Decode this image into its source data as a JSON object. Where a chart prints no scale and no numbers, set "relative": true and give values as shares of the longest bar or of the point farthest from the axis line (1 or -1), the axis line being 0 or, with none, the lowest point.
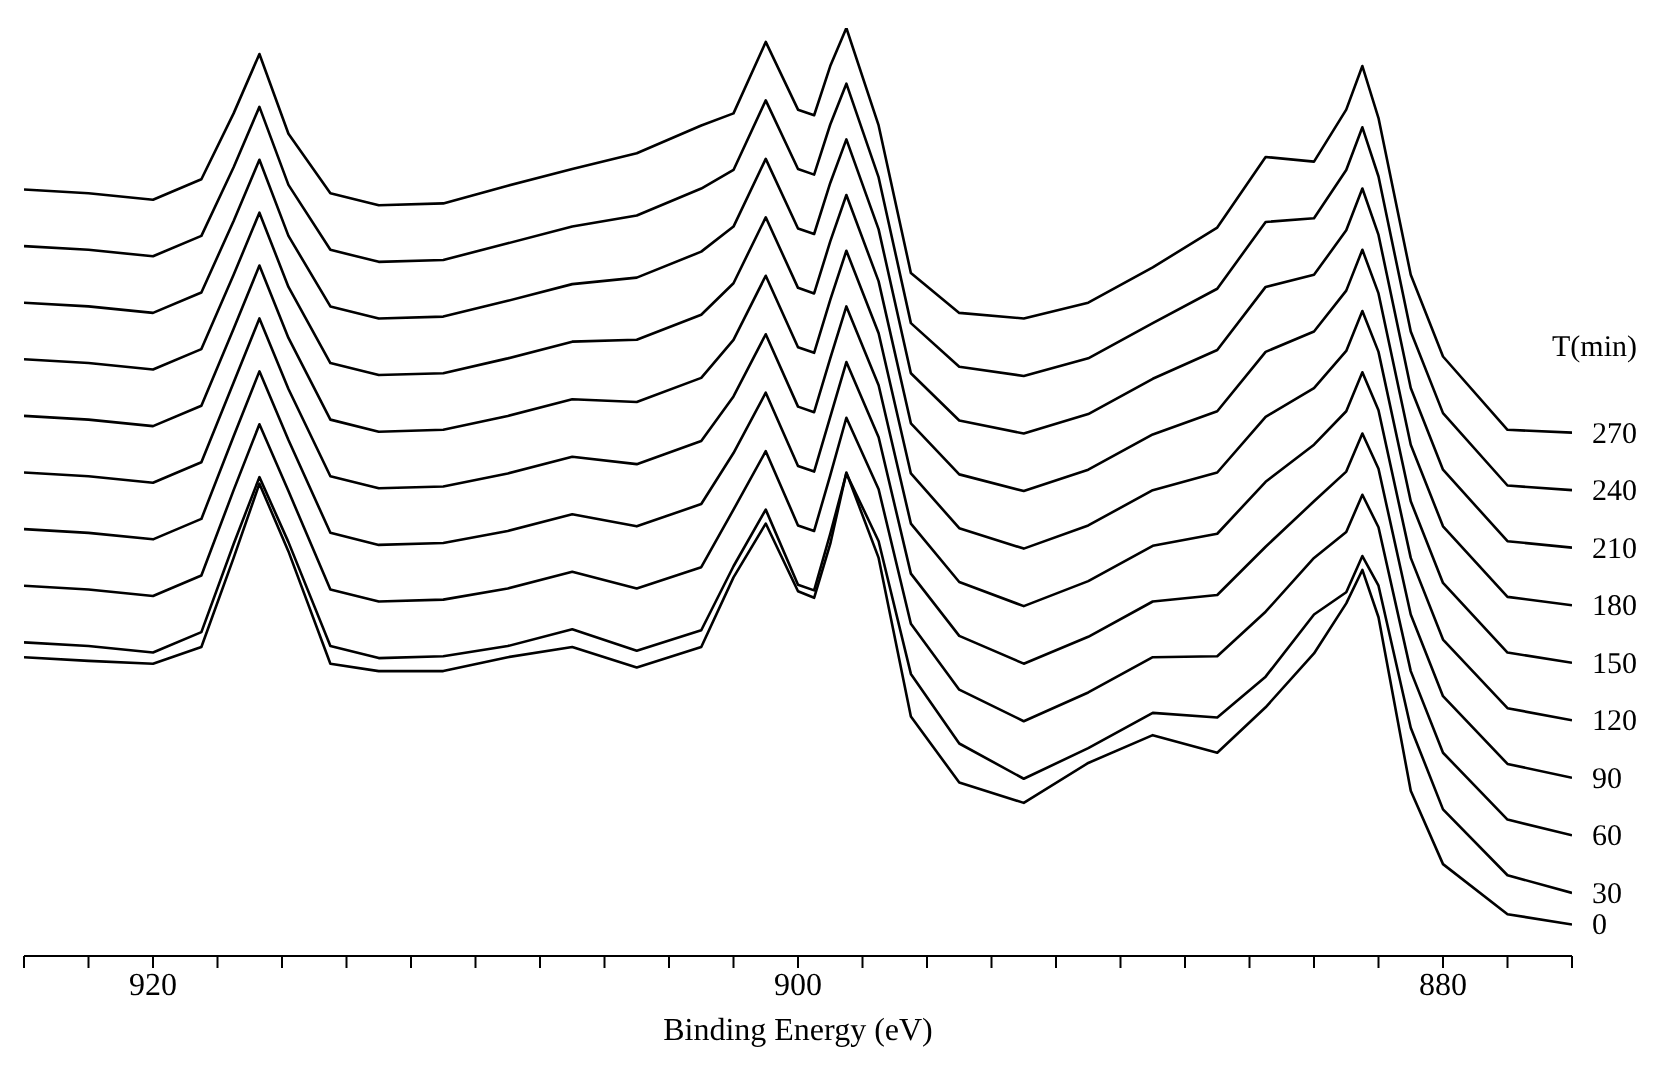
{
  "chart_data": {
    "type": "line",
    "relative": true,
    "xlabel": "Binding Energy (eV)",
    "legend_title": "T(min)",
    "legend": false,
    "marker": "none",
    "line_style": "solid",
    "xlim": [
      924,
      876
    ],
    "xticks": [
      {
        "value": 924,
        "label": null
      },
      {
        "value": 922,
        "label": null
      },
      920,
      {
        "value": 918,
        "label": null
      },
      {
        "value": 916,
        "label": null
      },
      {
        "value": 914,
        "label": null
      },
      {
        "value": 912,
        "label": null
      },
      {
        "value": 910,
        "label": null
      },
      {
        "value": 908,
        "label": null
      },
      {
        "value": 906,
        "label": null
      },
      {
        "value": 904,
        "label": null
      },
      {
        "value": 902,
        "label": null
      },
      900,
      {
        "value": 898,
        "label": null
      },
      {
        "value": 896,
        "label": null
      },
      {
        "value": 894,
        "label": null
      },
      {
        "value": 892,
        "label": null
      },
      {
        "value": 890,
        "label": null
      },
      {
        "value": 888,
        "label": null
      },
      {
        "value": 886,
        "label": null
      },
      {
        "value": 884,
        "label": null
      },
      {
        "value": 882,
        "label": null
      },
      880,
      {
        "value": 878,
        "label": null
      },
      {
        "value": 876,
        "label": null
      }
    ],
    "x": [
      924,
      922,
      920,
      918.5,
      917.5,
      916.7,
      915.8,
      914.5,
      913,
      911,
      909,
      907,
      905,
      903,
      902,
      901,
      900,
      899.5,
      899,
      898.5,
      897.5,
      896.5,
      895,
      893,
      891,
      889,
      887,
      885.5,
      884,
      883,
      882.5,
      882,
      881,
      880,
      878,
      876
    ],
    "series": [
      {
        "name": "270",
        "color": "#000000",
        "values": [
          0.826,
          0.822,
          0.815,
          0.837,
          0.908,
          0.972,
          0.886,
          0.822,
          0.809,
          0.811,
          0.83,
          0.848,
          0.865,
          0.895,
          0.908,
          0.985,
          0.912,
          0.906,
          0.959,
          1.0,
          0.895,
          0.736,
          0.693,
          0.687,
          0.704,
          0.742,
          0.785,
          0.861,
          0.856,
          0.912,
          0.959,
          0.903,
          0.734,
          0.646,
          0.567,
          0.564
        ]
      },
      {
        "name": "240",
        "color": "#000000",
        "values": [
          0.765,
          0.761,
          0.754,
          0.776,
          0.85,
          0.915,
          0.831,
          0.761,
          0.748,
          0.75,
          0.768,
          0.786,
          0.798,
          0.827,
          0.847,
          0.922,
          0.848,
          0.842,
          0.896,
          0.94,
          0.839,
          0.682,
          0.635,
          0.625,
          0.644,
          0.682,
          0.719,
          0.791,
          0.795,
          0.847,
          0.893,
          0.84,
          0.673,
          0.585,
          0.507,
          0.502
        ]
      },
      {
        "name": "210",
        "color": "#000000",
        "values": [
          0.704,
          0.7,
          0.693,
          0.715,
          0.792,
          0.858,
          0.776,
          0.7,
          0.687,
          0.689,
          0.706,
          0.724,
          0.731,
          0.759,
          0.786,
          0.859,
          0.784,
          0.778,
          0.833,
          0.88,
          0.783,
          0.628,
          0.577,
          0.563,
          0.584,
          0.622,
          0.653,
          0.721,
          0.734,
          0.782,
          0.827,
          0.777,
          0.612,
          0.524,
          0.447,
          0.44
        ]
      },
      {
        "name": "180",
        "color": "#000000",
        "values": [
          0.643,
          0.639,
          0.632,
          0.654,
          0.734,
          0.801,
          0.721,
          0.639,
          0.626,
          0.628,
          0.644,
          0.662,
          0.664,
          0.691,
          0.725,
          0.796,
          0.72,
          0.714,
          0.77,
          0.82,
          0.727,
          0.574,
          0.519,
          0.501,
          0.524,
          0.562,
          0.587,
          0.651,
          0.673,
          0.717,
          0.761,
          0.714,
          0.551,
          0.463,
          0.387,
          0.378
        ]
      },
      {
        "name": "150",
        "color": "#000000",
        "values": [
          0.582,
          0.578,
          0.571,
          0.593,
          0.676,
          0.744,
          0.666,
          0.578,
          0.565,
          0.567,
          0.582,
          0.6,
          0.597,
          0.623,
          0.664,
          0.733,
          0.656,
          0.65,
          0.707,
          0.76,
          0.671,
          0.52,
          0.461,
          0.439,
          0.464,
          0.502,
          0.521,
          0.581,
          0.612,
          0.652,
          0.695,
          0.651,
          0.49,
          0.402,
          0.327,
          0.316
        ]
      },
      {
        "name": "120",
        "color": "#000000",
        "values": [
          0.521,
          0.517,
          0.51,
          0.532,
          0.618,
          0.687,
          0.611,
          0.517,
          0.504,
          0.506,
          0.52,
          0.538,
          0.53,
          0.555,
          0.603,
          0.67,
          0.592,
          0.586,
          0.644,
          0.7,
          0.615,
          0.466,
          0.403,
          0.377,
          0.404,
          0.442,
          0.455,
          0.511,
          0.551,
          0.587,
          0.629,
          0.588,
          0.429,
          0.341,
          0.267,
          0.254
        ]
      },
      {
        "name": "90",
        "color": "#000000",
        "values": [
          0.46,
          0.456,
          0.449,
          0.471,
          0.56,
          0.63,
          0.556,
          0.456,
          0.443,
          0.445,
          0.458,
          0.476,
          0.463,
          0.487,
          0.542,
          0.607,
          0.528,
          0.522,
          0.581,
          0.64,
          0.559,
          0.412,
          0.345,
          0.315,
          0.344,
          0.382,
          0.389,
          0.441,
          0.49,
          0.522,
          0.563,
          0.525,
          0.368,
          0.28,
          0.207,
          0.192
        ]
      },
      {
        "name": "60",
        "color": "#000000",
        "values": [
          0.399,
          0.395,
          0.388,
          0.41,
          0.502,
          0.573,
          0.501,
          0.395,
          0.382,
          0.384,
          0.396,
          0.414,
          0.396,
          0.419,
          0.481,
          0.544,
          0.464,
          0.458,
          0.518,
          0.58,
          0.503,
          0.358,
          0.287,
          0.253,
          0.284,
          0.322,
          0.323,
          0.371,
          0.429,
          0.457,
          0.497,
          0.462,
          0.307,
          0.219,
          0.147,
          0.13
        ]
      },
      {
        "name": "30",
        "color": "#000000",
        "values": [
          0.338,
          0.334,
          0.327,
          0.349,
          0.444,
          0.516,
          0.446,
          0.334,
          0.321,
          0.323,
          0.334,
          0.352,
          0.329,
          0.351,
          0.42,
          0.481,
          0.4,
          0.394,
          0.455,
          0.52,
          0.447,
          0.304,
          0.229,
          0.191,
          0.224,
          0.262,
          0.257,
          0.301,
          0.368,
          0.392,
          0.431,
          0.399,
          0.246,
          0.158,
          0.087,
          0.068
        ]
      },
      {
        "name": "0",
        "color": "#000000",
        "values": [
          0.322,
          0.318,
          0.315,
          0.333,
          0.429,
          0.509,
          0.436,
          0.315,
          0.307,
          0.307,
          0.322,
          0.333,
          0.311,
          0.333,
          0.408,
          0.466,
          0.393,
          0.386,
          0.444,
          0.521,
          0.429,
          0.258,
          0.187,
          0.165,
          0.208,
          0.238,
          0.219,
          0.268,
          0.326,
          0.38,
          0.416,
          0.365,
          0.178,
          0.099,
          0.045,
          0.034
        ]
      }
    ]
  }
}
